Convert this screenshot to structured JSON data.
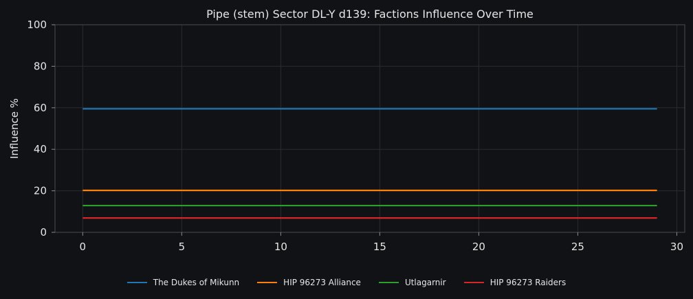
{
  "chart_data": {
    "type": "line",
    "title": "Pipe (stem) Sector DL-Y d139: Factions Influence Over Time",
    "xlabel": "",
    "ylabel": "Influence %",
    "xlim": [
      -1.4,
      30.4
    ],
    "ylim": [
      0,
      100
    ],
    "xticks": [
      0,
      5,
      10,
      15,
      20,
      25,
      30
    ],
    "yticks": [
      0,
      20,
      40,
      60,
      80,
      100
    ],
    "grid": true,
    "legend_position": "bottom-center",
    "x": [
      0,
      1,
      2,
      3,
      4,
      5,
      6,
      7,
      8,
      9,
      10,
      11,
      12,
      13,
      14,
      15,
      16,
      17,
      18,
      19,
      20,
      21,
      22,
      23,
      24,
      25,
      26,
      27,
      28,
      29
    ],
    "series": [
      {
        "name": "The Dukes of Mikunn",
        "color": "#1f77b4",
        "values": [
          59.5,
          59.5,
          59.5,
          59.5,
          59.5,
          59.5,
          59.5,
          59.5,
          59.5,
          59.5,
          59.5,
          59.5,
          59.5,
          59.5,
          59.5,
          59.5,
          59.5,
          59.5,
          59.5,
          59.5,
          59.5,
          59.5,
          59.5,
          59.5,
          59.5,
          59.5,
          59.5,
          59.5,
          59.5,
          59.5
        ]
      },
      {
        "name": "HIP 96273 Alliance",
        "color": "#ff7f0e",
        "values": [
          20.2,
          20.2,
          20.2,
          20.2,
          20.2,
          20.2,
          20.2,
          20.2,
          20.2,
          20.2,
          20.2,
          20.2,
          20.2,
          20.2,
          20.2,
          20.2,
          20.2,
          20.2,
          20.2,
          20.2,
          20.2,
          20.2,
          20.2,
          20.2,
          20.2,
          20.2,
          20.2,
          20.2,
          20.2,
          20.2
        ]
      },
      {
        "name": "Utlagarnir",
        "color": "#2ca02c",
        "values": [
          12.9,
          12.9,
          12.9,
          12.9,
          12.9,
          12.9,
          12.9,
          12.9,
          12.9,
          12.9,
          12.9,
          12.9,
          12.9,
          12.9,
          12.9,
          12.9,
          12.9,
          12.9,
          12.9,
          12.9,
          12.9,
          12.9,
          12.9,
          12.9,
          12.9,
          12.9,
          12.9,
          12.9,
          12.9,
          12.9
        ]
      },
      {
        "name": "HIP 96273 Raiders",
        "color": "#d62728",
        "values": [
          6.9,
          6.9,
          6.9,
          6.9,
          6.9,
          6.9,
          6.9,
          6.9,
          6.9,
          6.9,
          6.9,
          6.9,
          6.9,
          6.9,
          6.9,
          6.9,
          6.9,
          6.9,
          6.9,
          6.9,
          6.9,
          6.9,
          6.9,
          6.9,
          6.9,
          6.9,
          6.9,
          6.9,
          6.9,
          6.9
        ]
      }
    ]
  }
}
